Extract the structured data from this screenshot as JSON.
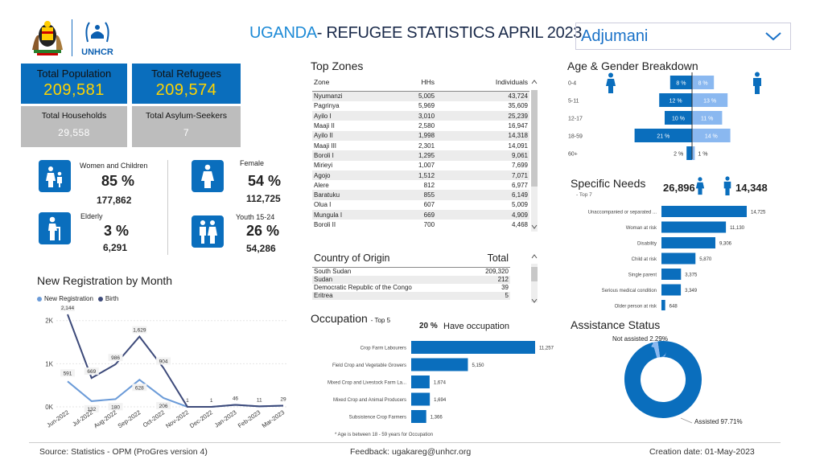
{
  "header": {
    "title_highlight": "UGANDA",
    "title_rest": "- REFUGEE STATISTICS APRIL 2023",
    "logo_text": "UNHCR",
    "district_select": "Adjumani"
  },
  "kpis": {
    "total_population_label": "Total Population",
    "total_population_value": "209,581",
    "total_refugees_label": "Total Refugees",
    "total_refugees_value": "209,574",
    "total_households_label": "Total Households",
    "total_households_value": "29,558",
    "total_asylum_label": "Total Asylum-Seekers",
    "total_asylum_value": "7"
  },
  "demographics": {
    "women_children_label": "Women and Children",
    "women_children_pct": "85 %",
    "women_children_count": "177,862",
    "female_label": "Female",
    "female_pct": "54 %",
    "female_count": "112,725",
    "elderly_label": "Elderly",
    "elderly_pct": "3 %",
    "elderly_count": "6,291",
    "youth_label": "Youth 15-24",
    "youth_pct": "26 %",
    "youth_count": "54,286"
  },
  "top_zones": {
    "title": "Top Zones",
    "headers": [
      "Zone",
      "HHs",
      "Individuals"
    ],
    "rows": [
      [
        "Nyumanzi",
        "5,005",
        "43,724"
      ],
      [
        "Pagrinya",
        "5,969",
        "35,609"
      ],
      [
        "Ayilo I",
        "3,010",
        "25,239"
      ],
      [
        "Maaji II",
        "2,580",
        "16,947"
      ],
      [
        "Ayilo II",
        "1,998",
        "14,318"
      ],
      [
        "Maaji III",
        "2,301",
        "14,091"
      ],
      [
        "Boroli I",
        "1,295",
        "9,061"
      ],
      [
        "Mirieyi",
        "1,007",
        "7,699"
      ],
      [
        "Agojo",
        "1,512",
        "7,071"
      ],
      [
        "Alere",
        "812",
        "6,977"
      ],
      [
        "Baratuku",
        "855",
        "6,149"
      ],
      [
        "Olua I",
        "607",
        "5,009"
      ],
      [
        "Mungula I",
        "669",
        "4,909"
      ],
      [
        "Boroli II",
        "700",
        "4,468"
      ]
    ]
  },
  "country_of_origin": {
    "headers": [
      "Country of Origin",
      "Total"
    ],
    "rows": [
      [
        "South Sudan",
        "209,320"
      ],
      [
        "Sudan",
        "212"
      ],
      [
        "Democratic Republic of the Congo",
        "39"
      ],
      [
        "Eritrea",
        "5"
      ]
    ]
  },
  "registration": {
    "title": "New Registration by Month",
    "legend_new": "New Registration",
    "legend_birth": "Birth",
    "yticks": [
      "2K",
      "1K",
      "0K"
    ]
  },
  "occupation": {
    "title": "Occupation",
    "subtitle": "- Top 5",
    "have_pct": "20 %",
    "have_label": "Have occupation",
    "footnote": "* Age is between 18 - 59 years for Occupation"
  },
  "age_gender": {
    "title": "Age & Gender Breakdown"
  },
  "specific_needs": {
    "title": "Specific Needs",
    "subtitle": "- Top 7",
    "female_total": "26,896",
    "male_total": "14,348"
  },
  "assistance": {
    "title": "Assistance Status",
    "not_assisted_label": "Not assisted 2.29%",
    "assisted_label": "Assisted 97.71%"
  },
  "footer": {
    "source": "Source: Statistics - OPM (ProGres version 4)",
    "feedback": "Feedback: ugakareg@unhcr.org",
    "creation": "Creation date: 01-May-2023"
  },
  "colors": {
    "primary_blue": "#0a6ebd",
    "light_blue": "#8ab8f0",
    "highlight_yellow": "#ffd400",
    "kpi_grey": "#bdbdbd"
  },
  "chart_data": [
    {
      "type": "line",
      "title": "New Registration by Month",
      "categories": [
        "Jun-2022",
        "Jul-2022",
        "Aug-2022",
        "Sep-2022",
        "Oct-2022",
        "Nov-2022",
        "Dec-2022",
        "Jan-2023",
        "Feb-2023",
        "Mar-2023"
      ],
      "series": [
        {
          "name": "New Registration",
          "values": [
            591,
            132,
            180,
            628,
            206,
            1,
            1,
            46,
            11,
            29
          ]
        },
        {
          "name": "Birth",
          "values": [
            2144,
            669,
            986,
            1629,
            904,
            1,
            1,
            46,
            11,
            29
          ]
        }
      ],
      "ylim": [
        0,
        2200
      ],
      "yticks": [
        "2K",
        "1K",
        "0K"
      ]
    },
    {
      "type": "bar",
      "title": "Occupation",
      "orientation": "horizontal",
      "categories": [
        "Crop Farm Labourers",
        "Field Crop and Vegetable Growers",
        "Mixed Crop and Livestock Farm La...",
        "Mixed Crop and Animal Producers",
        "Subsistence Crop Farmers"
      ],
      "values": [
        11257,
        5150,
        1674,
        1694,
        1366
      ],
      "value_labels": [
        "11,257",
        "5,150",
        "1,674",
        "1,694",
        "1,366"
      ]
    },
    {
      "type": "bar",
      "title": "Age & Gender Breakdown",
      "orientation": "horizontal-butterfly",
      "categories": [
        "0-4",
        "5-11",
        "12-17",
        "18-59",
        "60+"
      ],
      "series": [
        {
          "name": "Female",
          "values": [
            8,
            12,
            10,
            21,
            2
          ],
          "labels": [
            "8 %",
            "12 %",
            "10 %",
            "21 %",
            "2 %"
          ]
        },
        {
          "name": "Male",
          "values": [
            8,
            13,
            11,
            14,
            1
          ],
          "labels": [
            "8 %",
            "13 %",
            "11 %",
            "14 %",
            "1 %"
          ]
        }
      ]
    },
    {
      "type": "bar",
      "title": "Specific Needs",
      "orientation": "horizontal",
      "categories": [
        "Unaccompanied or separated ...",
        "Woman at risk",
        "Disability",
        "Child at risk",
        "Single parent",
        "Serious medical condition",
        "Older person at risk"
      ],
      "values": [
        14725,
        11130,
        9306,
        5870,
        3375,
        3349,
        648
      ],
      "value_labels": [
        "14,725",
        "11,130",
        "9,306",
        "5,870",
        "3,375",
        "3,349",
        "648"
      ]
    },
    {
      "type": "pie",
      "title": "Assistance Status",
      "categories": [
        "Assisted",
        "Not assisted"
      ],
      "values": [
        97.71,
        2.29
      ]
    }
  ]
}
